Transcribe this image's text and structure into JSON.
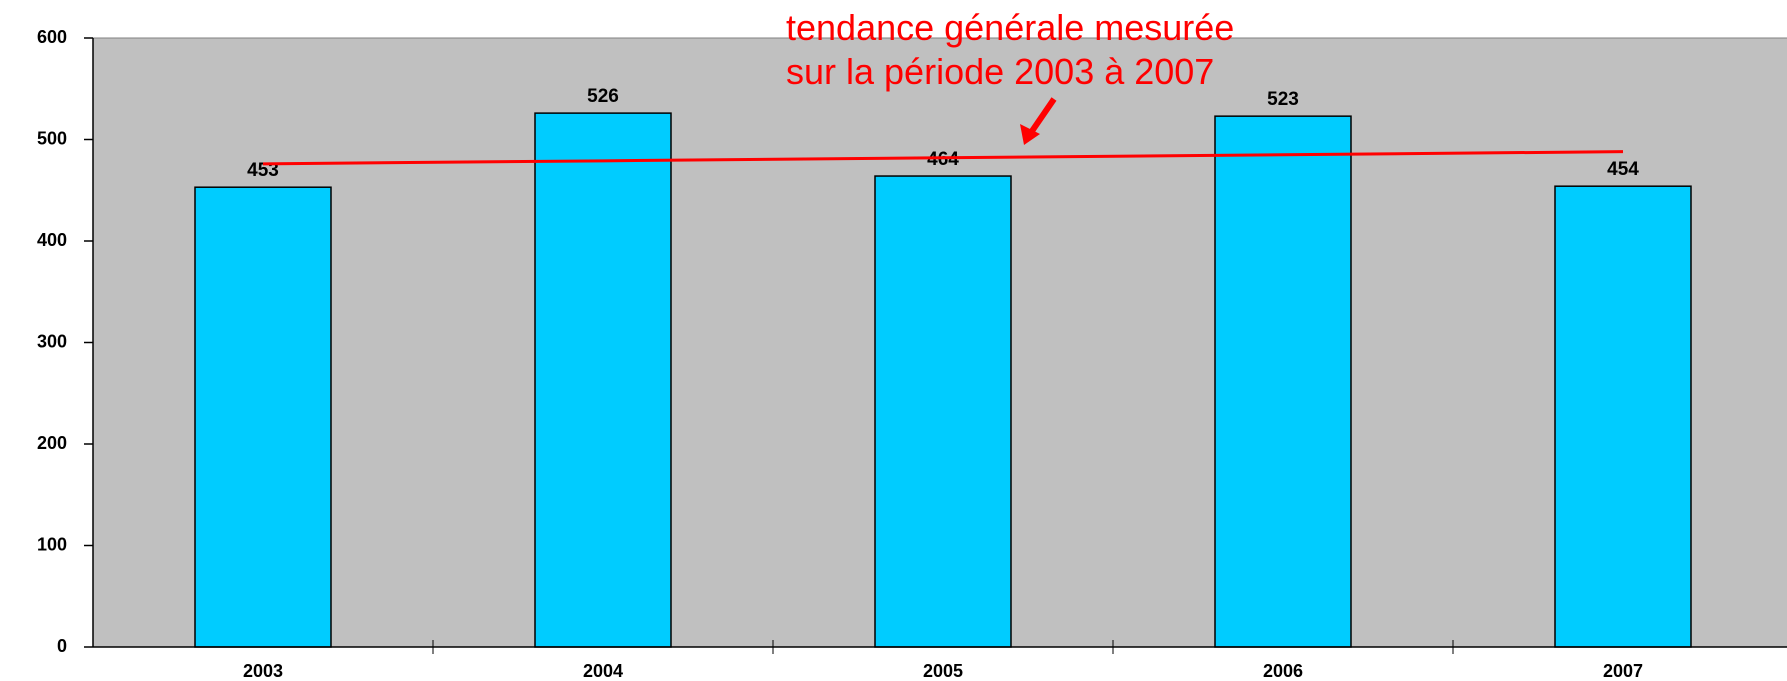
{
  "chart_data": {
    "type": "bar",
    "annotation": [
      "tendance générale mesurée",
      "sur la période 2003 à 2007"
    ],
    "categories": [
      "2003",
      "2004",
      "2005",
      "2006",
      "2007"
    ],
    "values": [
      453,
      526,
      464,
      523,
      454
    ],
    "color": "#00ccff",
    "trend_line": {
      "color": "#ff0000",
      "values": [
        476,
        479,
        482,
        485,
        488
      ]
    },
    "ylim": [
      0,
      600
    ],
    "yticks": [
      0,
      100,
      200,
      300,
      400,
      500,
      600
    ],
    "background": "#c0c0c0"
  }
}
